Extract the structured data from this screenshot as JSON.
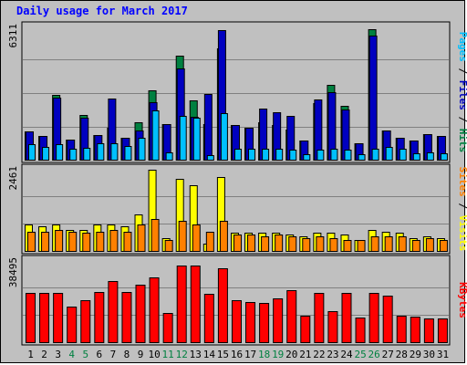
{
  "title": "Daily usage for March 2017",
  "panels": {
    "top": {
      "max_label": "6311",
      "right_label": [
        {
          "text": "Pages",
          "color": "#00c0ff"
        },
        {
          "text": " / ",
          "color": "#000000"
        },
        {
          "text": "Files",
          "color": "#0000c0"
        },
        {
          "text": " / ",
          "color": "#000000"
        },
        {
          "text": "Hits",
          "color": "#008040"
        }
      ]
    },
    "middle": {
      "max_label": "2461",
      "right_label": [
        {
          "text": "Sites",
          "color": "#ff8000"
        },
        {
          "text": " / ",
          "color": "#000000"
        },
        {
          "text": "Visits",
          "color": "#ffff00"
        }
      ]
    },
    "bottom": {
      "max_label": "38495",
      "right_label": [
        {
          "text": "KBytes",
          "color": "#ff0000"
        }
      ]
    }
  },
  "chart_data": {
    "type": "bar",
    "title": "Daily usage for March 2017",
    "categories": [
      "1",
      "2",
      "3",
      "4",
      "5",
      "6",
      "7",
      "8",
      "9",
      "10",
      "11",
      "12",
      "13",
      "14",
      "15",
      "16",
      "17",
      "18",
      "19",
      "20",
      "21",
      "22",
      "23",
      "24",
      "25",
      "26",
      "27",
      "28",
      "29",
      "30",
      "31"
    ],
    "weekend_days": [
      "4",
      "5",
      "11",
      "12",
      "18",
      "19",
      "25",
      "26"
    ],
    "colors": {
      "hits": "#008040",
      "files": "#0000c0",
      "pages": "#00c0ff",
      "visits": "#ffff00",
      "sites": "#ff8000",
      "kbytes": "#ff0000",
      "weekday_label": "#000000",
      "weekend_label": "#008040"
    },
    "panels": [
      {
        "name": "top",
        "ymax": 6311,
        "series": [
          {
            "name": "Hits",
            "values": [
              1350,
              1150,
              3050,
              1000,
              2150,
              1200,
              1550,
              1050,
              1800,
              3300,
              1700,
              4900,
              2800,
              1700,
              5250,
              1650,
              1550,
              1800,
              1650,
              1450,
              950,
              2700,
              3550,
              2550,
              800,
              6150,
              1400,
              1050,
              950,
              1250,
              1150
            ]
          },
          {
            "name": "Files",
            "values": [
              1350,
              1150,
              2950,
              1000,
              2000,
              1200,
              2900,
              1050,
              1400,
              2750,
              1700,
              4300,
              2050,
              3100,
              6100,
              1650,
              1550,
              2450,
              2250,
              2100,
              950,
              2850,
              3200,
              2400,
              800,
              5850,
              1400,
              1050,
              950,
              1250,
              1150
            ]
          },
          {
            "name": "Pages",
            "values": [
              750,
              650,
              750,
              550,
              600,
              800,
              800,
              700,
              1050,
              2350,
              400,
              2100,
              2000,
              250,
              2200,
              550,
              550,
              550,
              550,
              500,
              300,
              500,
              550,
              500,
              300,
              550,
              650,
              550,
              350,
              400,
              350
            ]
          }
        ]
      },
      {
        "name": "middle",
        "ymax": 2461,
        "series": [
          {
            "name": "Visits",
            "values": [
              800,
              750,
              800,
              650,
              650,
              800,
              800,
              750,
              1100,
              2400,
              400,
              2150,
              1950,
              250,
              2200,
              550,
              550,
              550,
              550,
              500,
              450,
              550,
              550,
              500,
              350,
              650,
              600,
              550,
              400,
              450,
              400
            ]
          },
          {
            "name": "Sites",
            "values": [
              600,
              600,
              650,
              600,
              550,
              600,
              650,
              600,
              800,
              950,
              350,
              900,
              800,
              600,
              900,
              500,
              500,
              450,
              500,
              450,
              400,
              450,
              400,
              350,
              350,
              450,
              450,
              450,
              350,
              400,
              350
            ]
          }
        ]
      },
      {
        "name": "bottom",
        "ymax": 38495,
        "series": [
          {
            "name": "KBytes",
            "values": [
              23100,
              23100,
              23100,
              16700,
              19800,
              23400,
              28600,
              23400,
              26800,
              30200,
              13600,
              35700,
              35700,
              22400,
              34300,
              19800,
              18800,
              18300,
              20400,
              24300,
              12500,
              22900,
              14600,
              22900,
              11700,
              22900,
              21900,
              12500,
              12100,
              11200,
              11200
            ]
          }
        ]
      }
    ]
  }
}
